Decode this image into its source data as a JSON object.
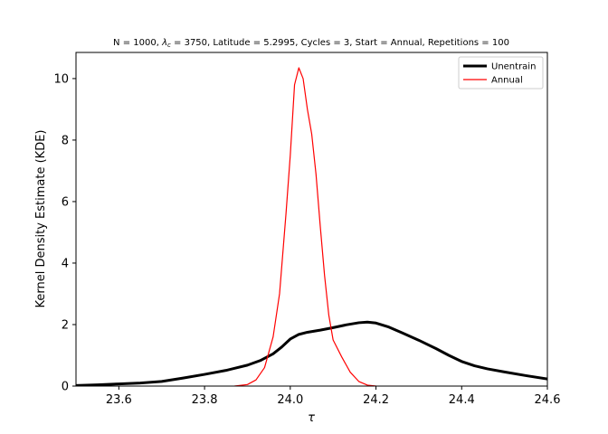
{
  "chart_data": {
    "type": "line",
    "title": "N = 1000, λc = 3750, Latitude = 5.2995, Cycles = 3, Start = Annual, Repetitions = 100",
    "title_parts": {
      "before": "N = 1000, ",
      "symbol": "λ",
      "subscript": "c",
      "after": " = 3750, Latitude = 5.2995, Cycles = 3, Start = Annual, Repetitions = 100"
    },
    "xlabel": "τ",
    "ylabel": "Kernel Density Estimate (KDE)",
    "xlim": [
      23.5,
      24.6
    ],
    "ylim": [
      0,
      10.85
    ],
    "xticks": [
      23.6,
      23.8,
      24.0,
      24.2,
      24.4,
      24.6
    ],
    "xtick_labels": [
      "23.6",
      "23.8",
      "24.0",
      "24.2",
      "24.4",
      "24.6"
    ],
    "yticks": [
      0,
      2,
      4,
      6,
      8,
      10
    ],
    "ytick_labels": [
      "0",
      "2",
      "4",
      "6",
      "8",
      "10"
    ],
    "grid": false,
    "legend_position": "top-right",
    "series": [
      {
        "name": "Unentrain",
        "color": "#000000",
        "line_width": 3,
        "points": [
          [
            23.5,
            0.02
          ],
          [
            23.55,
            0.04
          ],
          [
            23.6,
            0.07
          ],
          [
            23.65,
            0.1
          ],
          [
            23.7,
            0.15
          ],
          [
            23.75,
            0.26
          ],
          [
            23.8,
            0.38
          ],
          [
            23.85,
            0.51
          ],
          [
            23.9,
            0.68
          ],
          [
            23.93,
            0.83
          ],
          [
            23.96,
            1.05
          ],
          [
            23.98,
            1.27
          ],
          [
            24.0,
            1.53
          ],
          [
            24.02,
            1.68
          ],
          [
            24.04,
            1.75
          ],
          [
            24.07,
            1.82
          ],
          [
            24.1,
            1.9
          ],
          [
            24.13,
            1.99
          ],
          [
            24.16,
            2.06
          ],
          [
            24.18,
            2.08
          ],
          [
            24.2,
            2.05
          ],
          [
            24.23,
            1.92
          ],
          [
            24.26,
            1.74
          ],
          [
            24.3,
            1.49
          ],
          [
            24.34,
            1.22
          ],
          [
            24.37,
            1.0
          ],
          [
            24.4,
            0.8
          ],
          [
            24.43,
            0.66
          ],
          [
            24.46,
            0.56
          ],
          [
            24.5,
            0.46
          ],
          [
            24.55,
            0.34
          ],
          [
            24.6,
            0.23
          ]
        ]
      },
      {
        "name": "Annual",
        "color": "#ff0000",
        "line_width": 1.2,
        "points": [
          [
            23.87,
            0.0
          ],
          [
            23.9,
            0.05
          ],
          [
            23.92,
            0.2
          ],
          [
            23.94,
            0.6
          ],
          [
            23.96,
            1.6
          ],
          [
            23.975,
            3.0
          ],
          [
            23.99,
            5.6
          ],
          [
            24.0,
            7.5
          ],
          [
            24.01,
            9.8
          ],
          [
            24.02,
            10.35
          ],
          [
            24.03,
            10.0
          ],
          [
            24.04,
            9.0
          ],
          [
            24.05,
            8.2
          ],
          [
            24.06,
            6.9
          ],
          [
            24.07,
            5.2
          ],
          [
            24.08,
            3.6
          ],
          [
            24.09,
            2.3
          ],
          [
            24.1,
            1.5
          ],
          [
            24.12,
            0.95
          ],
          [
            24.14,
            0.45
          ],
          [
            24.16,
            0.15
          ],
          [
            24.18,
            0.03
          ],
          [
            24.2,
            0.0
          ]
        ]
      }
    ]
  }
}
